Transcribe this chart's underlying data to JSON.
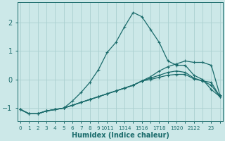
{
  "xlabel": "Humidex (Indice chaleur)",
  "bg_color": "#cce8e8",
  "grid_color": "#aad0d0",
  "line_color": "#1a6b6b",
  "ylim": [
    -1.45,
    2.7
  ],
  "yticks": [
    -1,
    0,
    1,
    2
  ],
  "xlim": [
    -0.3,
    23.3
  ],
  "series": [
    {
      "x": [
        0,
        1,
        2,
        3,
        4,
        5,
        6,
        7,
        8,
        9,
        10,
        11,
        12,
        13,
        14,
        15,
        16,
        17,
        18,
        19,
        20,
        21,
        22,
        23
      ],
      "y": [
        -1.05,
        -1.2,
        -1.2,
        -1.1,
        -1.05,
        -1.0,
        -0.75,
        -0.45,
        -0.1,
        0.35,
        0.95,
        1.3,
        1.85,
        2.35,
        2.2,
        1.75,
        1.3,
        0.65,
        0.5,
        0.5,
        0.15,
        0.0,
        -0.35,
        -0.6
      ],
      "marker": "+"
    },
    {
      "x": [
        0,
        1,
        2,
        3,
        4,
        5,
        6,
        7,
        8,
        9,
        10,
        11,
        12,
        13,
        14,
        15,
        16,
        17,
        18,
        19,
        20,
        21,
        22,
        23
      ],
      "y": [
        -1.05,
        -1.2,
        -1.2,
        -1.1,
        -1.05,
        -1.0,
        -0.9,
        -0.8,
        -0.7,
        -0.6,
        -0.5,
        -0.4,
        -0.3,
        -0.2,
        -0.05,
        0.1,
        0.3,
        0.45,
        0.55,
        0.65,
        0.6,
        0.6,
        0.5,
        -0.55
      ],
      "marker": "+"
    },
    {
      "x": [
        0,
        1,
        2,
        3,
        4,
        5,
        6,
        7,
        8,
        9,
        10,
        11,
        12,
        13,
        14,
        15,
        16,
        17,
        18,
        19,
        20,
        21,
        22,
        23
      ],
      "y": [
        -1.05,
        -1.2,
        -1.2,
        -1.1,
        -1.05,
        -1.0,
        -0.9,
        -0.8,
        -0.7,
        -0.6,
        -0.5,
        -0.4,
        -0.3,
        -0.2,
        -0.05,
        0.05,
        0.15,
        0.25,
        0.3,
        0.25,
        0.05,
        -0.05,
        -0.1,
        -0.6
      ],
      "marker": "+"
    },
    {
      "x": [
        0,
        1,
        2,
        3,
        4,
        5,
        6,
        7,
        8,
        9,
        10,
        11,
        12,
        13,
        14,
        15,
        16,
        17,
        18,
        19,
        20,
        21,
        22,
        23
      ],
      "y": [
        -1.05,
        -1.2,
        -1.2,
        -1.1,
        -1.05,
        -1.0,
        -0.9,
        -0.8,
        -0.7,
        -0.6,
        -0.5,
        -0.4,
        -0.3,
        -0.2,
        -0.05,
        0.0,
        0.08,
        0.15,
        0.18,
        0.18,
        0.02,
        -0.05,
        -0.2,
        -0.6
      ],
      "marker": "+"
    }
  ]
}
